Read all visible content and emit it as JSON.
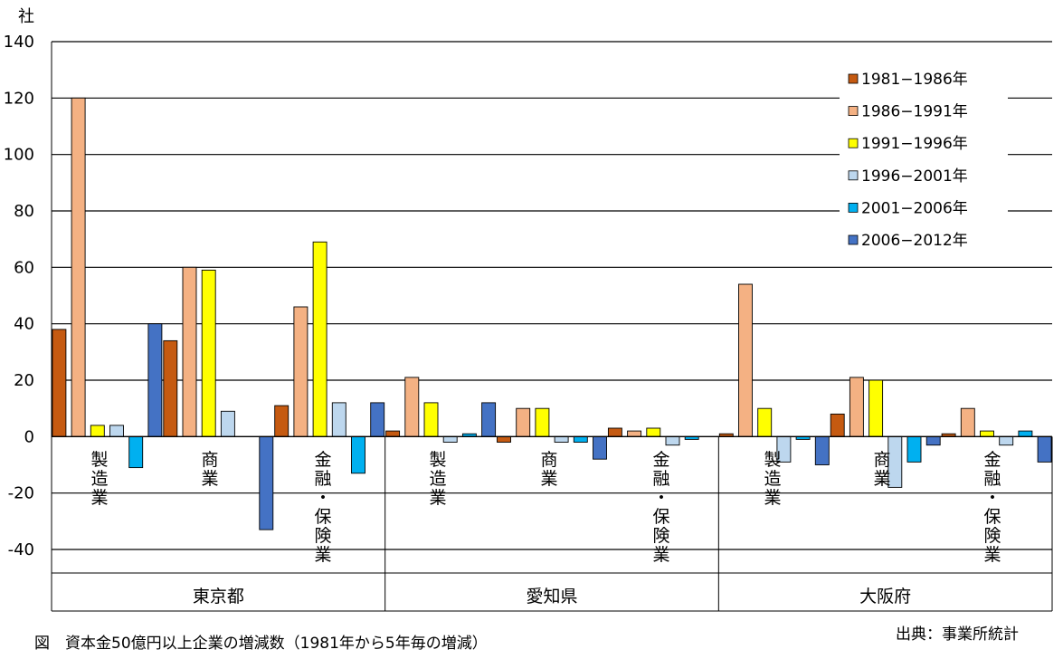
{
  "chart_data": {
    "type": "bar",
    "ylabel": "社",
    "ylim": [
      -40,
      140
    ],
    "yticks": [
      140,
      120,
      100,
      80,
      60,
      40,
      20,
      0,
      -20,
      -40
    ],
    "grid": true,
    "legend_position": "top-right",
    "groups": [
      {
        "name": "東京都",
        "categories": [
          "製造業",
          "商業",
          "金融・保険業"
        ]
      },
      {
        "name": "愛知県",
        "categories": [
          "製造業",
          "商業",
          "金融・保険業"
        ]
      },
      {
        "name": "大阪府",
        "categories": [
          "製造業",
          "商業",
          "金融・保険業"
        ]
      }
    ],
    "categories": [
      "東京都 製造業",
      "東京都 商業",
      "東京都 金融・保険業",
      "愛知県 製造業",
      "愛知県 商業",
      "愛知県 金融・保険業",
      "大阪府 製造業",
      "大阪府 商業",
      "大阪府 金融・保険業"
    ],
    "series": [
      {
        "name": "1981−1986年",
        "color": "#C55A11",
        "values": [
          38,
          34,
          11,
          2,
          -2,
          3,
          1,
          8,
          1
        ]
      },
      {
        "name": "1986−1991年",
        "color": "#F4B183",
        "values": [
          120,
          60,
          46,
          21,
          10,
          2,
          54,
          21,
          10
        ]
      },
      {
        "name": "1991−1996年",
        "color": "#FFFF00",
        "values": [
          4,
          59,
          69,
          12,
          10,
          3,
          10,
          20,
          2
        ]
      },
      {
        "name": "1996−2001年",
        "color": "#BDD7EE",
        "values": [
          4,
          9,
          12,
          -2,
          -2,
          -3,
          -9,
          -18,
          -3
        ]
      },
      {
        "name": "2001−2006年",
        "color": "#00B0F0",
        "values": [
          -11,
          0,
          -13,
          1,
          -2,
          -1,
          -1,
          -9,
          2
        ]
      },
      {
        "name": "2006−2012年",
        "color": "#4472C4",
        "values": [
          40,
          -33,
          12,
          12,
          -8,
          0,
          -10,
          -3,
          -9
        ]
      }
    ]
  },
  "figure_caption": "図　資本金50億円以上企業の増減数（1981年から5年毎の増減）",
  "source_note": "出典：事業所統計"
}
